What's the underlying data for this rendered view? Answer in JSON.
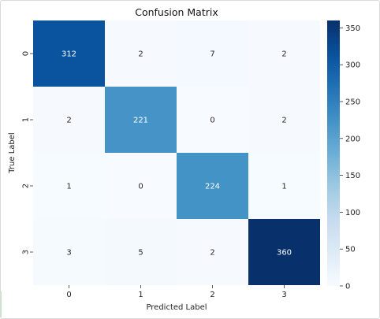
{
  "chart_data": {
    "type": "heatmap",
    "title": "Confusion Matrix",
    "xlabel": "Predicted Label",
    "ylabel": "True Label",
    "x_categories": [
      "0",
      "1",
      "2",
      "3"
    ],
    "y_categories": [
      "0",
      "1",
      "2",
      "3"
    ],
    "values": [
      [
        312,
        2,
        7,
        2
      ],
      [
        2,
        221,
        0,
        2
      ],
      [
        1,
        0,
        224,
        1
      ],
      [
        3,
        5,
        2,
        360
      ]
    ],
    "colormap": "Blues",
    "colorbar": {
      "range": [
        0,
        360
      ],
      "ticks": [
        0,
        50,
        100,
        150,
        200,
        250,
        300,
        350
      ]
    },
    "colors": {
      "min": "#f7fbff",
      "max": "#08306b"
    }
  }
}
